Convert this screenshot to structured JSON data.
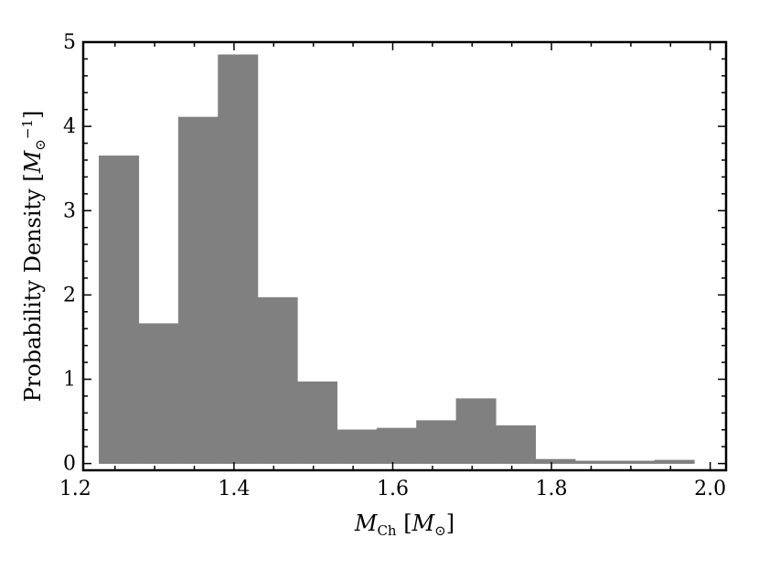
{
  "chart_data": {
    "type": "bar",
    "subtype": "histogram",
    "xlabel": {
      "symbol": "M",
      "subscript": "Ch",
      "unit_symbol": "M",
      "unit_subscript": "⊙"
    },
    "ylabel": {
      "text": "Probability Density",
      "unit_symbol": "M",
      "unit_subscript": "⊙",
      "unit_superscript": "−1"
    },
    "xlim": [
      1.21,
      2.02
    ],
    "ylim": [
      -0.08,
      5.0
    ],
    "x_ticks": [
      1.2,
      1.4,
      1.6,
      1.8,
      2.0
    ],
    "x_tick_labels": [
      "1.2",
      "1.4",
      "1.6",
      "1.8",
      "2.0"
    ],
    "y_ticks": [
      0,
      1,
      2,
      3,
      4,
      5
    ],
    "y_tick_labels": [
      "0",
      "1",
      "2",
      "3",
      "4",
      "5"
    ],
    "bin_edges": [
      1.23,
      1.28,
      1.33,
      1.38,
      1.43,
      1.48,
      1.53,
      1.58,
      1.63,
      1.68,
      1.73,
      1.78,
      1.83,
      1.88,
      1.93,
      1.98
    ],
    "values": [
      3.65,
      1.66,
      4.11,
      4.85,
      1.97,
      0.97,
      0.4,
      0.42,
      0.51,
      0.77,
      0.45,
      0.05,
      0.03,
      0.03,
      0.04
    ],
    "bar_color": "#808080",
    "grid": false
  }
}
